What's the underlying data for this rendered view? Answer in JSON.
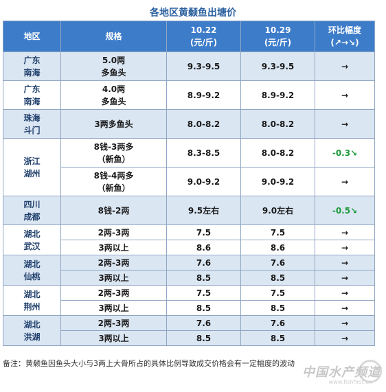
{
  "title": "各地区黄颡鱼出塘价",
  "header": {
    "region": "地区",
    "spec": "规格",
    "date1": "10.22",
    "date2": "10.29",
    "unit": "(元/斤)",
    "change": "环比幅度",
    "change_sub": "(↗→↘)"
  },
  "rows": [
    {
      "region": [
        "广东",
        "南海"
      ],
      "items": [
        {
          "spec": [
            "5.0两",
            "多鱼头"
          ],
          "p1": "9.3-9.5",
          "p2": "9.3-9.5",
          "chg": "→"
        }
      ]
    },
    {
      "region": [
        "广东",
        "南海"
      ],
      "items": [
        {
          "spec": [
            "4.0两",
            "多鱼头"
          ],
          "p1": "8.9-9.2",
          "p2": "8.9-9.2",
          "chg": "→"
        }
      ]
    },
    {
      "region": [
        "珠海",
        "斗门"
      ],
      "items": [
        {
          "spec": [
            "3两多鱼头"
          ],
          "p1": "8.0-8.2",
          "p2": "8.0-8.2",
          "chg": "→"
        }
      ]
    },
    {
      "region": [
        "浙江",
        "湖州"
      ],
      "items": [
        {
          "spec": [
            "8钱-3两多",
            "（新鱼）"
          ],
          "p1": "8.3-8.5",
          "p2": "8.0-8.2",
          "chg": "-0.3↘"
        },
        {
          "spec": [
            "8钱-4两多",
            "（新鱼）"
          ],
          "p1": "9.0-9.2",
          "p2": "9.0-9.2",
          "chg": "→"
        }
      ]
    },
    {
      "region": [
        "四川",
        "成都"
      ],
      "items": [
        {
          "spec": [
            "8钱-2两"
          ],
          "p1": "9.5左右",
          "p2": "9.0左右",
          "chg": "-0.5↘"
        }
      ]
    },
    {
      "region": [
        "湖北",
        "武汉"
      ],
      "items": [
        {
          "spec": [
            "2两-3两"
          ],
          "p1": "7.5",
          "p2": "7.5",
          "chg": "→"
        },
        {
          "spec": [
            "3两以上"
          ],
          "p1": "8.6",
          "p2": "8.6",
          "chg": "→"
        }
      ]
    },
    {
      "region": [
        "湖北",
        "仙桃"
      ],
      "items": [
        {
          "spec": [
            "2两-3两"
          ],
          "p1": "7.6",
          "p2": "7.6",
          "chg": "→"
        },
        {
          "spec": [
            "3两以上"
          ],
          "p1": "8.5",
          "p2": "8.5",
          "chg": "→"
        }
      ]
    },
    {
      "region": [
        "湖北",
        "荆州"
      ],
      "items": [
        {
          "spec": [
            "2两-3两"
          ],
          "p1": "7.5",
          "p2": "7.5",
          "chg": "→"
        },
        {
          "spec": [
            "3两以上"
          ],
          "p1": "8.5",
          "p2": "8.5",
          "chg": "→"
        }
      ]
    },
    {
      "region": [
        "湖北",
        "洪湖"
      ],
      "items": [
        {
          "spec": [
            "2两-3两"
          ],
          "p1": "7.6",
          "p2": "7.6",
          "chg": "→"
        },
        {
          "spec": [
            "3两以上"
          ],
          "p1": "8.5",
          "p2": "8.5",
          "chg": "→"
        }
      ]
    }
  ],
  "note": "备注：黄颡鱼因鱼头大小与3两上大骨所占的具体比例导致成交价格会有一定幅度的波动",
  "watermark": "中国水产频道",
  "watermark_url": "www.fishfirst.cn",
  "colors": {
    "header_bg": "#3d7cc9",
    "row_blue": "#dbe6f3",
    "down_green": "#1c9a3a"
  }
}
